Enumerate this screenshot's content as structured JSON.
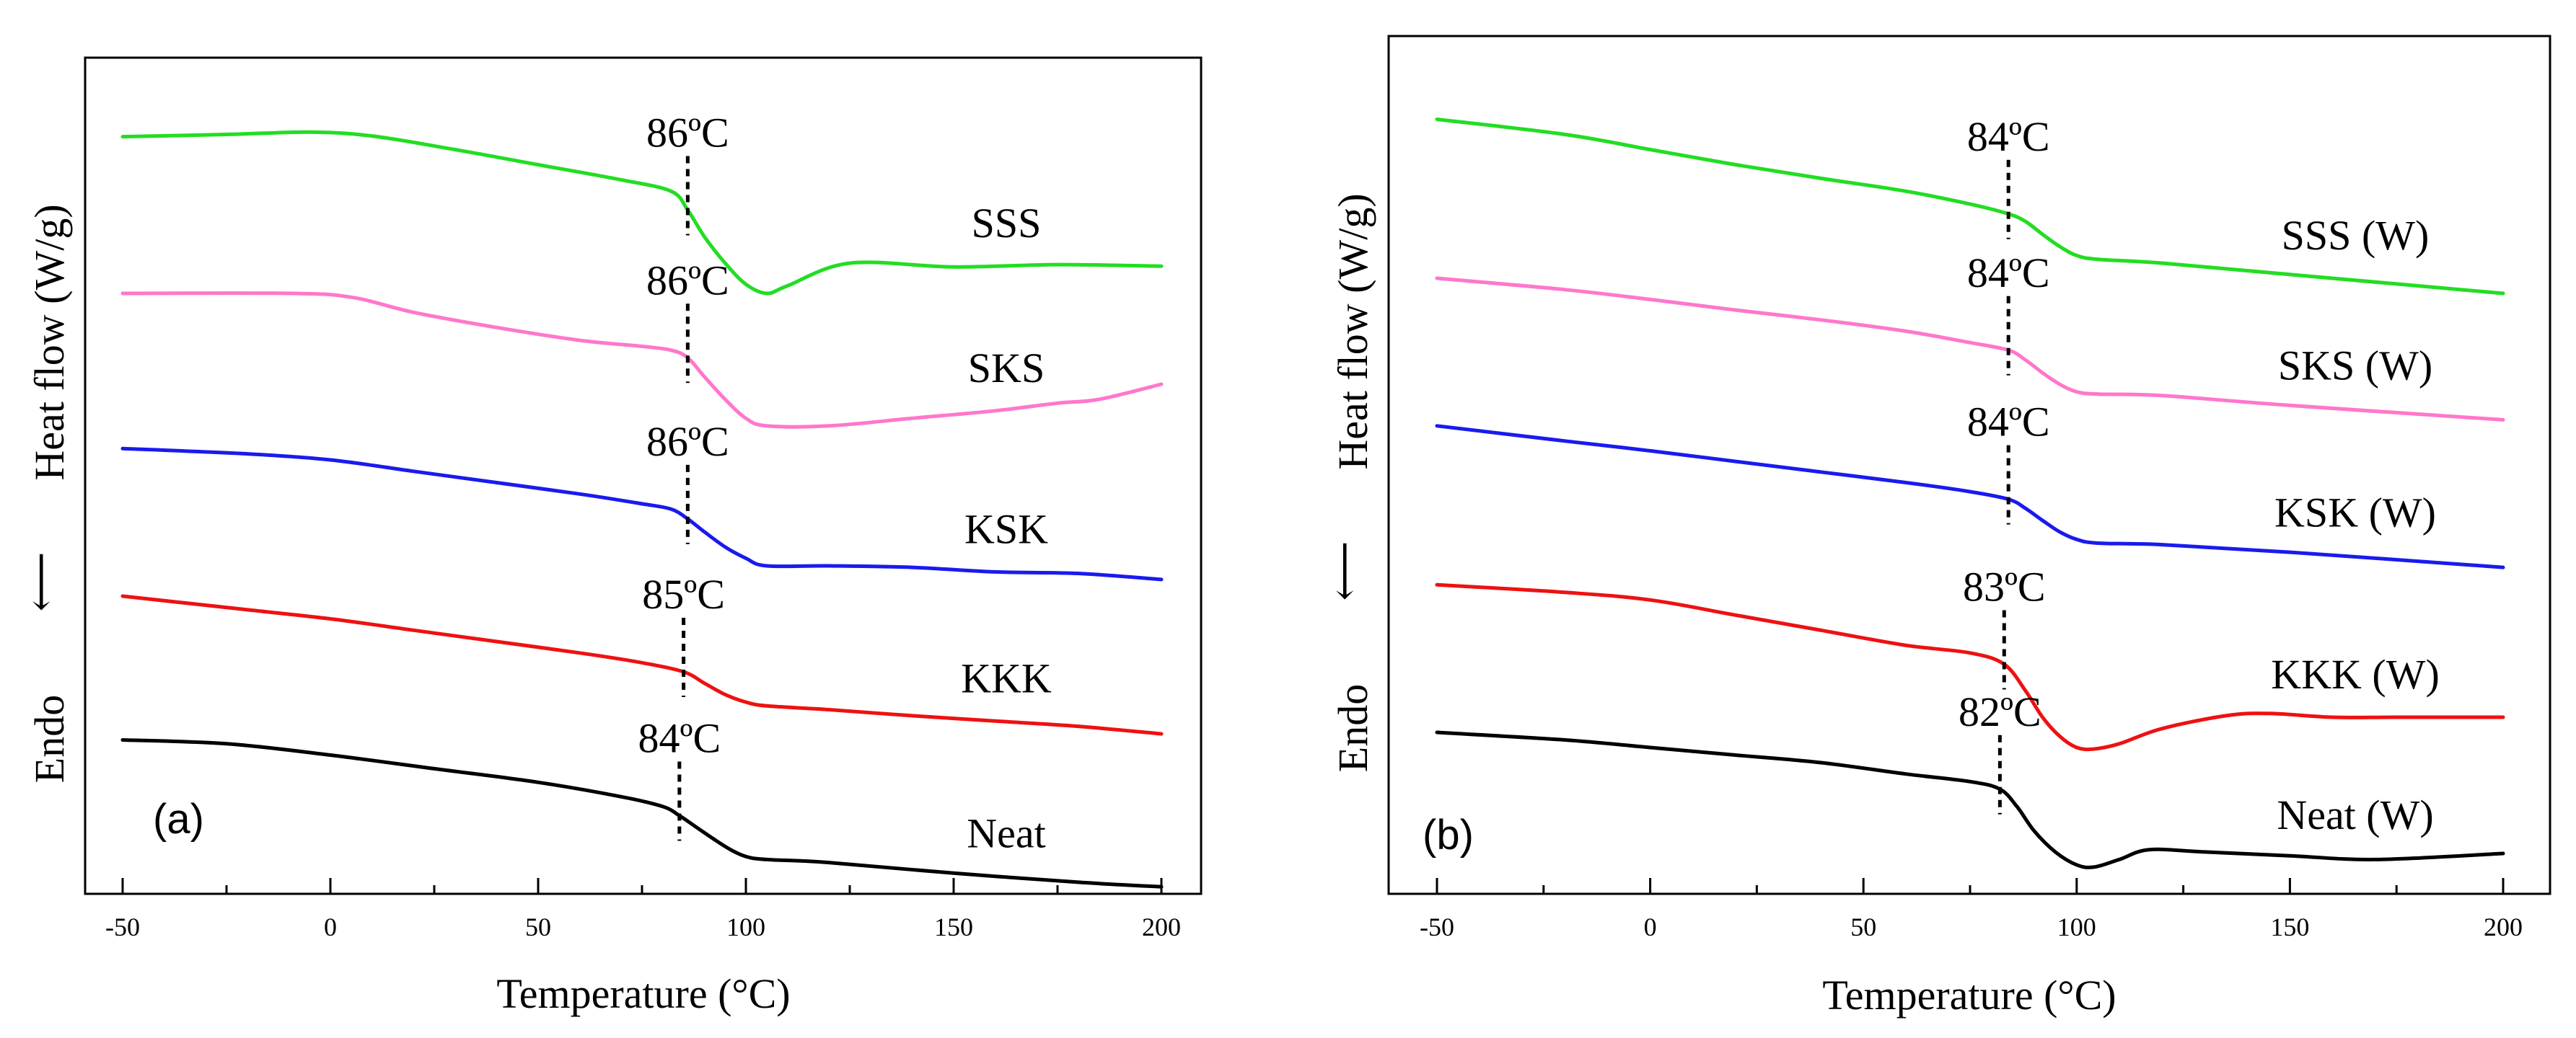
{
  "chart_data": [
    {
      "panel_label": "(a)",
      "type": "line",
      "xlabel": "Temperature (°C)",
      "ylabel_heat": "Heat flow (W/g)",
      "ylabel_endo": "Endo",
      "xlim": [
        -50,
        200
      ],
      "xticks": [
        "-50",
        "0",
        "50",
        "100",
        "150",
        "200"
      ],
      "ylim": [
        0,
        10.2
      ],
      "series": [
        {
          "name": "SSS",
          "color": "#22dd22",
          "tg_label": "86ºC",
          "tg": 86,
          "x": [
            -50,
            -25,
            -5,
            10,
            30,
            50,
            70,
            82,
            86,
            90,
            95,
            100,
            105,
            110,
            125,
            150,
            175,
            200
          ],
          "y": [
            9.67,
            9.7,
            9.73,
            9.68,
            9.5,
            9.3,
            9.1,
            8.95,
            8.7,
            8.35,
            8.0,
            7.72,
            7.6,
            7.7,
            8.0,
            7.95,
            7.98,
            7.96
          ]
        },
        {
          "name": "SKS",
          "color": "#ff77cc",
          "tg_label": "86ºC",
          "tg": 86,
          "x": [
            -50,
            -10,
            5,
            20,
            40,
            60,
            75,
            82,
            86,
            90,
            95,
            100,
            105,
            120,
            140,
            160,
            175,
            185,
            200
          ],
          "y": [
            7.6,
            7.6,
            7.55,
            7.35,
            7.15,
            6.98,
            6.9,
            6.85,
            6.75,
            6.5,
            6.2,
            5.95,
            5.85,
            5.85,
            5.95,
            6.05,
            6.15,
            6.2,
            6.4
          ]
        },
        {
          "name": "KSK",
          "color": "#1a1aee",
          "tg_label": "86ºC",
          "tg": 86,
          "x": [
            -50,
            -20,
            0,
            20,
            40,
            60,
            75,
            82,
            86,
            90,
            95,
            100,
            105,
            120,
            140,
            160,
            180,
            200
          ],
          "y": [
            5.55,
            5.48,
            5.4,
            5.25,
            5.1,
            4.95,
            4.82,
            4.75,
            4.62,
            4.45,
            4.25,
            4.1,
            4.0,
            4.0,
            3.98,
            3.92,
            3.9,
            3.82
          ]
        },
        {
          "name": "KKK",
          "color": "#ee1111",
          "tg_label": "85ºC",
          "tg": 85,
          "x": [
            -50,
            -20,
            0,
            20,
            40,
            60,
            75,
            85,
            90,
            95,
            100,
            105,
            120,
            140,
            160,
            180,
            200
          ],
          "y": [
            3.6,
            3.42,
            3.3,
            3.15,
            3.0,
            2.85,
            2.72,
            2.6,
            2.45,
            2.3,
            2.2,
            2.15,
            2.1,
            2.02,
            1.95,
            1.88,
            1.78
          ]
        },
        {
          "name": "Neat",
          "color": "#000000",
          "tg_label": "84ºC",
          "tg": 84,
          "x": [
            -50,
            -25,
            0,
            25,
            50,
            70,
            80,
            84,
            88,
            92,
            96,
            100,
            105,
            120,
            150,
            180,
            200
          ],
          "y": [
            1.7,
            1.65,
            1.5,
            1.32,
            1.14,
            0.95,
            0.82,
            0.7,
            0.55,
            0.4,
            0.26,
            0.16,
            0.12,
            0.08,
            -0.06,
            -0.18,
            -0.24
          ]
        }
      ]
    },
    {
      "panel_label": "(b)",
      "type": "line",
      "xlabel": "Temperature (°C)",
      "ylabel_heat": "Heat flow (W/g)",
      "ylabel_endo": "Endo",
      "xlim": [
        -50,
        200
      ],
      "xticks": [
        "-50",
        "0",
        "50",
        "100",
        "150",
        "200"
      ],
      "ylim": [
        0,
        10.2
      ],
      "series": [
        {
          "name": "SSS (W)",
          "color": "#22dd22",
          "tg_label": "84ºC",
          "tg": 84,
          "x": [
            -50,
            -20,
            0,
            20,
            40,
            60,
            75,
            84,
            88,
            92,
            96,
            100,
            105,
            120,
            150,
            200
          ],
          "y": [
            9.9,
            9.7,
            9.5,
            9.3,
            9.12,
            8.95,
            8.78,
            8.65,
            8.55,
            8.38,
            8.22,
            8.1,
            8.05,
            8.0,
            7.85,
            7.6
          ]
        },
        {
          "name": "SKS (W)",
          "color": "#ff77cc",
          "tg_label": "84ºC",
          "tg": 84,
          "x": [
            -50,
            -20,
            0,
            20,
            40,
            60,
            75,
            84,
            88,
            92,
            96,
            100,
            105,
            120,
            150,
            200
          ],
          "y": [
            7.8,
            7.65,
            7.52,
            7.38,
            7.25,
            7.1,
            6.95,
            6.85,
            6.72,
            6.55,
            6.4,
            6.3,
            6.27,
            6.25,
            6.12,
            5.93
          ]
        },
        {
          "name": "KSK (W)",
          "color": "#1a1aee",
          "tg_label": "84ºC",
          "tg": 84,
          "x": [
            -50,
            -20,
            0,
            20,
            40,
            60,
            75,
            84,
            88,
            92,
            96,
            100,
            105,
            120,
            150,
            200
          ],
          "y": [
            5.85,
            5.65,
            5.52,
            5.38,
            5.24,
            5.1,
            4.98,
            4.88,
            4.76,
            4.6,
            4.45,
            4.35,
            4.3,
            4.28,
            4.18,
            3.98
          ]
        },
        {
          "name": "KKK (W)",
          "color": "#ee1111",
          "tg_label": "83ºC",
          "tg": 83,
          "x": [
            -50,
            -20,
            0,
            20,
            40,
            60,
            75,
            83,
            88,
            92,
            96,
            100,
            104,
            110,
            120,
            135,
            145,
            160,
            175,
            200
          ],
          "y": [
            3.75,
            3.65,
            3.55,
            3.35,
            3.15,
            2.95,
            2.85,
            2.7,
            2.35,
            2.0,
            1.75,
            1.6,
            1.58,
            1.65,
            1.85,
            2.02,
            2.05,
            2.0,
            2.0,
            2.0
          ]
        },
        {
          "name": "Neat (W)",
          "color": "#000000",
          "tg_label": "82ºC",
          "tg": 82,
          "x": [
            -50,
            -20,
            0,
            20,
            40,
            60,
            75,
            82,
            86,
            90,
            95,
            100,
            104,
            110,
            117,
            130,
            150,
            170,
            200
          ],
          "y": [
            1.8,
            1.7,
            1.6,
            1.5,
            1.4,
            1.25,
            1.15,
            1.05,
            0.82,
            0.5,
            0.22,
            0.05,
            0.02,
            0.12,
            0.25,
            0.22,
            0.17,
            0.12,
            0.2
          ]
        }
      ]
    }
  ]
}
